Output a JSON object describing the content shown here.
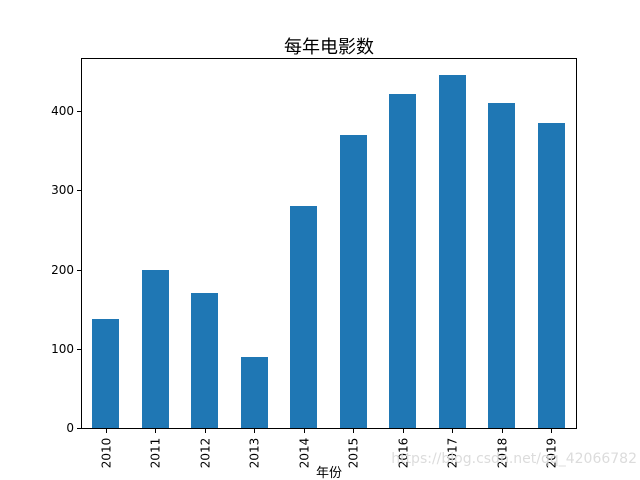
{
  "chart_data": {
    "type": "bar",
    "title": "每年电影数",
    "xlabel": "年份",
    "ylabel": "",
    "categories": [
      "2010",
      "2011",
      "2012",
      "2013",
      "2014",
      "2015",
      "2016",
      "2017",
      "2018",
      "2019"
    ],
    "values": [
      138,
      200,
      170,
      90,
      280,
      370,
      422,
      445,
      410,
      385
    ],
    "ylim": [
      0,
      467
    ],
    "yticks": [
      0,
      100,
      200,
      300,
      400
    ],
    "bar_color": "#1f77b4",
    "grid": false,
    "legend": null
  },
  "watermark": {
    "text": "https://blog.csdn.net/qq_42066782",
    "color": "#dcdcdc"
  }
}
